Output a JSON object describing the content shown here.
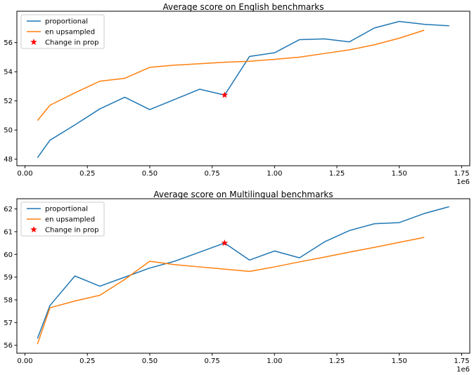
{
  "figure": {
    "background": "#ffffff",
    "text_color": "#000000",
    "spine_color": "#000000",
    "legend_border_color": "#cccccc",
    "legend_background": "#ffffff"
  },
  "chart_data": [
    {
      "type": "line",
      "title": "Average score on English benchmarks",
      "xlabel": "",
      "ylabel": "",
      "x_offset_label": "1e6",
      "xlim": [
        -32500,
        1782500
      ],
      "ylim": [
        47.55,
        58.15
      ],
      "xticks": {
        "values": [
          0,
          250000,
          500000,
          750000,
          1000000,
          1250000,
          1500000,
          1750000
        ],
        "labels": [
          "0.00",
          "0.25",
          "0.50",
          "0.75",
          "1.00",
          "1.25",
          "1.50",
          "1.75"
        ]
      },
      "yticks": {
        "values": [
          48,
          50,
          52,
          54,
          56
        ],
        "labels": [
          "48",
          "50",
          "52",
          "54",
          "56"
        ]
      },
      "grid": false,
      "legend": {
        "position": "upper left",
        "entries": [
          "proportional",
          "en upsampled",
          "Change in prop"
        ]
      },
      "series": [
        {
          "name": "proportional",
          "color": "#1f77b4",
          "x": [
            50000,
            100000,
            200000,
            300000,
            400000,
            500000,
            600000,
            700000,
            800000,
            900000,
            1000000,
            1100000,
            1200000,
            1300000,
            1400000,
            1500000,
            1600000,
            1700000
          ],
          "y": [
            48.1,
            49.3,
            50.35,
            51.45,
            52.25,
            51.4,
            52.1,
            52.8,
            52.4,
            55.05,
            55.3,
            56.2,
            56.25,
            56.05,
            57.0,
            57.45,
            57.25,
            57.15
          ]
        },
        {
          "name": "en upsampled",
          "color": "#ff7f0e",
          "x": [
            50000,
            100000,
            200000,
            300000,
            400000,
            500000,
            600000,
            700000,
            800000,
            900000,
            1000000,
            1100000,
            1200000,
            1300000,
            1400000,
            1500000,
            1600000
          ],
          "y": [
            50.65,
            51.7,
            52.55,
            53.35,
            53.55,
            54.3,
            54.45,
            54.55,
            54.65,
            54.72,
            54.85,
            55.0,
            55.25,
            55.5,
            55.85,
            56.3,
            56.85
          ]
        }
      ],
      "markers": [
        {
          "name": "Change in prop",
          "shape": "star",
          "color": "#ff0000",
          "x": 800000,
          "y": 52.4
        }
      ]
    },
    {
      "type": "line",
      "title": "Average score on Multilingual benchmarks",
      "xlabel": "",
      "ylabel": "",
      "x_offset_label": "1e6",
      "xlim": [
        -32500,
        1782500
      ],
      "ylim": [
        55.65,
        62.45
      ],
      "xticks": {
        "values": [
          0,
          250000,
          500000,
          750000,
          1000000,
          1250000,
          1500000,
          1750000
        ],
        "labels": [
          "0.00",
          "0.25",
          "0.50",
          "0.75",
          "1.00",
          "1.25",
          "1.50",
          "1.75"
        ]
      },
      "yticks": {
        "values": [
          56,
          57,
          58,
          59,
          60,
          61,
          62
        ],
        "labels": [
          "56",
          "57",
          "58",
          "59",
          "60",
          "61",
          "62"
        ]
      },
      "grid": false,
      "legend": {
        "position": "upper left",
        "entries": [
          "proportional",
          "en upsampled",
          "Change in prop"
        ]
      },
      "series": [
        {
          "name": "proportional",
          "color": "#1f77b4",
          "x": [
            50000,
            100000,
            200000,
            300000,
            400000,
            500000,
            600000,
            700000,
            800000,
            900000,
            1000000,
            1100000,
            1200000,
            1300000,
            1400000,
            1500000,
            1600000,
            1700000
          ],
          "y": [
            56.3,
            57.75,
            59.05,
            58.6,
            59.0,
            59.4,
            59.7,
            60.1,
            60.5,
            59.75,
            60.15,
            59.85,
            60.55,
            61.05,
            61.35,
            61.4,
            61.8,
            62.1
          ]
        },
        {
          "name": "en upsampled",
          "color": "#ff7f0e",
          "x": [
            50000,
            100000,
            200000,
            300000,
            400000,
            500000,
            600000,
            700000,
            800000,
            900000,
            1000000,
            1100000,
            1200000,
            1300000,
            1400000,
            1500000,
            1600000
          ],
          "y": [
            56.05,
            57.65,
            57.95,
            58.2,
            58.9,
            59.7,
            59.55,
            59.45,
            59.35,
            59.25,
            59.45,
            59.67,
            59.88,
            60.1,
            60.31,
            60.53,
            60.75
          ]
        }
      ],
      "markers": [
        {
          "name": "Change in prop",
          "shape": "star",
          "color": "#ff0000",
          "x": 800000,
          "y": 60.5
        }
      ]
    }
  ]
}
